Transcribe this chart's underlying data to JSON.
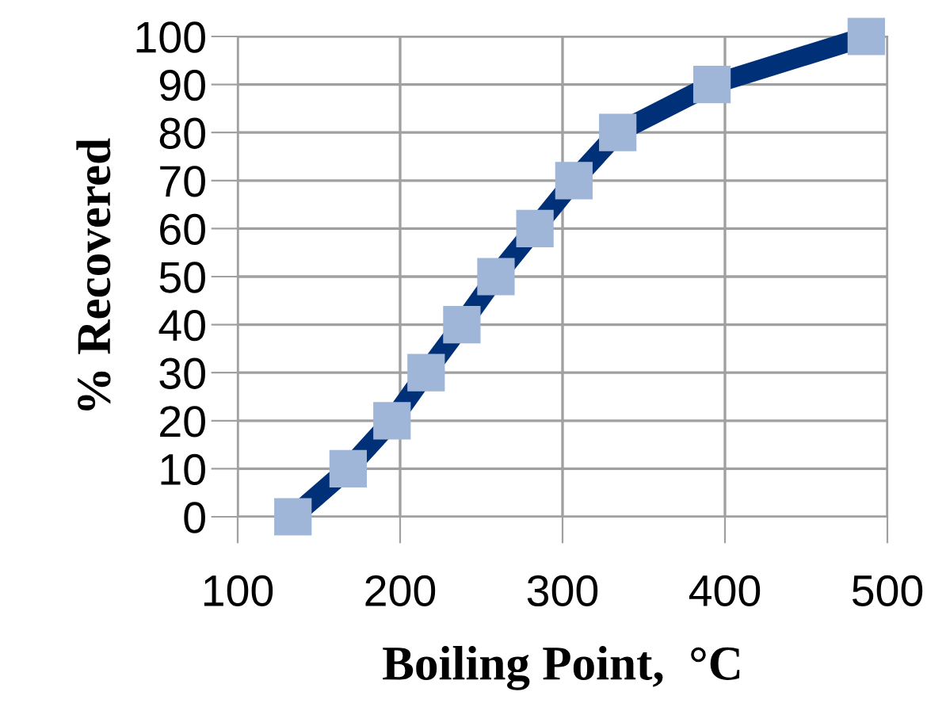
{
  "chart_data": {
    "type": "line",
    "xlabel": "Boiling Point,  °C",
    "ylabel": "% Recovered",
    "x": [
      134,
      168,
      195,
      216,
      238,
      259,
      283,
      307,
      334,
      392,
      487
    ],
    "series": [
      {
        "color": "#003178",
        "values": [
          0,
          10,
          20,
          30,
          40,
          50,
          60,
          70,
          80,
          90,
          100
        ]
      }
    ],
    "marker": "square",
    "line_style": "solid",
    "xlim": [
      100,
      500
    ],
    "xticks": [
      100,
      200,
      300,
      400,
      500
    ],
    "ylim": [
      0,
      100
    ],
    "yticks": [
      0,
      10,
      20,
      30,
      40,
      50,
      60,
      70,
      80,
      90,
      100
    ],
    "grid": true,
    "legend": false
  }
}
